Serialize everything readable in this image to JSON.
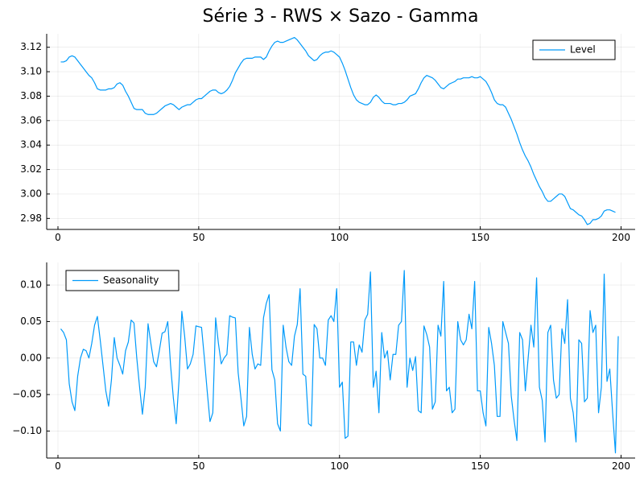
{
  "title": "Série 3 - RWS × Sazo - Gamma",
  "colors": {
    "series": "#009AFA",
    "grid": "#000000",
    "axis": "#000000",
    "background": "#ffffff"
  },
  "chart_data": [
    {
      "type": "line",
      "title": "",
      "xlabel": "",
      "ylabel": "",
      "xlim": [
        -4,
        205
      ],
      "ylim": [
        2.971,
        3.131
      ],
      "xticks": [
        0,
        50,
        100,
        150,
        200
      ],
      "xtick_labels": [
        "0",
        "50",
        "100",
        "150",
        "200"
      ],
      "yticks": [
        2.98,
        3.0,
        3.02,
        3.04,
        3.06,
        3.08,
        3.1,
        3.12
      ],
      "ytick_labels": [
        "2.98",
        "3.00",
        "3.02",
        "3.04",
        "3.06",
        "3.08",
        "3.10",
        "3.12"
      ],
      "grid": true,
      "legend_position": "top-right",
      "series": [
        {
          "name": "Level",
          "x_start": 1,
          "x_step": 1,
          "values": [
            3.108,
            3.108,
            3.109,
            3.112,
            3.113,
            3.112,
            3.109,
            3.106,
            3.103,
            3.1,
            3.097,
            3.095,
            3.091,
            3.086,
            3.085,
            3.085,
            3.085,
            3.086,
            3.086,
            3.087,
            3.09,
            3.091,
            3.089,
            3.084,
            3.08,
            3.075,
            3.07,
            3.069,
            3.069,
            3.069,
            3.066,
            3.065,
            3.065,
            3.065,
            3.066,
            3.068,
            3.07,
            3.072,
            3.073,
            3.074,
            3.073,
            3.071,
            3.069,
            3.071,
            3.072,
            3.073,
            3.073,
            3.075,
            3.077,
            3.078,
            3.078,
            3.08,
            3.082,
            3.084,
            3.085,
            3.085,
            3.083,
            3.082,
            3.083,
            3.085,
            3.088,
            3.093,
            3.099,
            3.103,
            3.107,
            3.11,
            3.111,
            3.111,
            3.111,
            3.112,
            3.112,
            3.112,
            3.11,
            3.112,
            3.117,
            3.121,
            3.124,
            3.125,
            3.124,
            3.124,
            3.125,
            3.126,
            3.127,
            3.128,
            3.126,
            3.123,
            3.12,
            3.117,
            3.113,
            3.111,
            3.109,
            3.11,
            3.113,
            3.115,
            3.116,
            3.116,
            3.117,
            3.116,
            3.114,
            3.112,
            3.107,
            3.101,
            3.094,
            3.087,
            3.081,
            3.077,
            3.075,
            3.074,
            3.073,
            3.073,
            3.075,
            3.079,
            3.081,
            3.079,
            3.076,
            3.074,
            3.074,
            3.074,
            3.073,
            3.073,
            3.074,
            3.074,
            3.075,
            3.077,
            3.08,
            3.081,
            3.082,
            3.086,
            3.091,
            3.095,
            3.097,
            3.096,
            3.095,
            3.093,
            3.09,
            3.087,
            3.086,
            3.088,
            3.09,
            3.091,
            3.092,
            3.094,
            3.094,
            3.095,
            3.095,
            3.095,
            3.096,
            3.095,
            3.095,
            3.096,
            3.094,
            3.092,
            3.088,
            3.083,
            3.077,
            3.074,
            3.073,
            3.073,
            3.071,
            3.066,
            3.061,
            3.055,
            3.049,
            3.042,
            3.036,
            3.031,
            3.027,
            3.022,
            3.016,
            3.011,
            3.006,
            3.002,
            2.997,
            2.994,
            2.994,
            2.996,
            2.998,
            3.0,
            3.0,
            2.998,
            2.993,
            2.988,
            2.987,
            2.985,
            2.983,
            2.982,
            2.979,
            2.975,
            2.976,
            2.979,
            2.979,
            2.98,
            2.982,
            2.986,
            2.987,
            2.987,
            2.986,
            2.985
          ]
        }
      ]
    },
    {
      "type": "line",
      "title": "",
      "xlabel": "",
      "ylabel": "",
      "xlim": [
        -4,
        205
      ],
      "ylim": [
        -0.137,
        0.131
      ],
      "xticks": [
        0,
        50,
        100,
        150,
        200
      ],
      "xtick_labels": [
        "0",
        "50",
        "100",
        "150",
        "200"
      ],
      "yticks": [
        -0.1,
        -0.05,
        0.0,
        0.05,
        0.1
      ],
      "ytick_labels": [
        "−0.10",
        "−0.05",
        "0.00",
        "0.05",
        "0.10"
      ],
      "grid": true,
      "legend_position": "top-left",
      "series": [
        {
          "name": "Seasonality",
          "x_start": 1,
          "x_step": 1,
          "values": [
            0.04,
            0.035,
            0.025,
            -0.035,
            -0.06,
            -0.072,
            -0.025,
            0.0,
            0.012,
            0.01,
            0.0,
            0.02,
            0.045,
            0.057,
            0.025,
            -0.01,
            -0.045,
            -0.066,
            -0.03,
            0.028,
            0.0,
            -0.01,
            -0.022,
            0.01,
            0.022,
            0.052,
            0.048,
            0.0,
            -0.04,
            -0.077,
            -0.04,
            0.047,
            0.02,
            -0.005,
            -0.012,
            0.01,
            0.034,
            0.036,
            0.05,
            -0.01,
            -0.055,
            -0.09,
            -0.03,
            0.064,
            0.03,
            -0.015,
            -0.008,
            0.005,
            0.044,
            0.043,
            0.042,
            0.0,
            -0.045,
            -0.087,
            -0.075,
            0.055,
            0.02,
            -0.008,
            0.0,
            0.005,
            0.058,
            0.056,
            0.055,
            -0.02,
            -0.055,
            -0.093,
            -0.08,
            0.042,
            0.005,
            -0.015,
            -0.008,
            -0.01,
            0.055,
            0.075,
            0.087,
            -0.016,
            -0.03,
            -0.09,
            -0.1,
            0.045,
            0.015,
            -0.005,
            -0.01,
            0.03,
            0.046,
            0.095,
            -0.022,
            -0.025,
            -0.09,
            -0.093,
            0.046,
            0.04,
            0.0,
            0.0,
            -0.01,
            0.052,
            0.058,
            0.05,
            0.095,
            -0.04,
            -0.033,
            -0.11,
            -0.107,
            0.022,
            0.022,
            -0.01,
            0.018,
            0.008,
            0.052,
            0.06,
            0.118,
            -0.04,
            -0.018,
            -0.075,
            0.035,
            0.0,
            0.01,
            -0.03,
            0.005,
            0.005,
            0.045,
            0.05,
            0.12,
            -0.04,
            0.0,
            -0.017,
            0.002,
            -0.072,
            -0.075,
            0.044,
            0.032,
            0.015,
            -0.07,
            -0.06,
            0.045,
            0.03,
            0.105,
            -0.045,
            -0.04,
            -0.075,
            -0.07,
            0.05,
            0.025,
            0.018,
            0.025,
            0.06,
            0.04,
            0.105,
            -0.045,
            -0.045,
            -0.075,
            -0.093,
            0.042,
            0.02,
            -0.01,
            -0.08,
            -0.08,
            0.05,
            0.035,
            0.02,
            -0.052,
            -0.085,
            -0.113,
            0.035,
            0.025,
            -0.045,
            0.0,
            0.045,
            0.015,
            0.11,
            -0.04,
            -0.058,
            -0.115,
            0.035,
            0.045,
            -0.03,
            -0.055,
            -0.05,
            0.04,
            0.02,
            0.08,
            -0.055,
            -0.075,
            -0.115,
            0.025,
            0.02,
            -0.06,
            -0.055,
            0.065,
            0.035,
            0.045,
            -0.075,
            -0.04,
            0.115,
            -0.032,
            -0.015,
            -0.075,
            -0.13,
            0.03
          ]
        }
      ]
    }
  ]
}
